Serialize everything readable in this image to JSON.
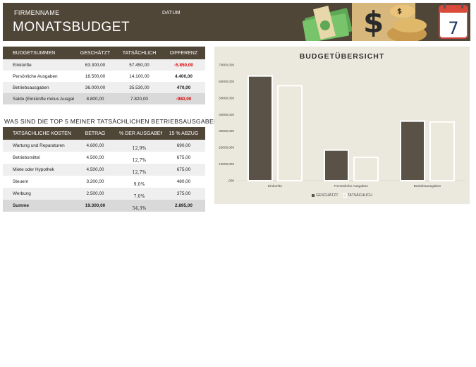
{
  "header": {
    "company": "FIRMENNAME",
    "date_label": "DATUM",
    "title": "MONATSBUDGET",
    "calendar_day": "7"
  },
  "summary": {
    "headers": [
      "BUDGETSUMMEN",
      "GESCHÄTZT",
      "TATSÄCHLICH",
      "DIFFERENZ"
    ],
    "rows": [
      {
        "label": "Einkünfte",
        "est": "63.300,00",
        "act": "57.450,00",
        "diff": "-5.850,00",
        "neg": true
      },
      {
        "label": "Persönliche Ausgaben",
        "est": "18.500,00",
        "act": "14.100,00",
        "diff": "4.400,00",
        "neg": false
      },
      {
        "label": "Betriebsausgaben",
        "est": "36.000,00",
        "act": "35.530,00",
        "diff": "470,00",
        "neg": false
      },
      {
        "label": "Saldo (Einkünfte minus Ausgaben)",
        "est": "8.800,00",
        "act": "7.820,00",
        "diff": "-980,00",
        "neg": true
      }
    ]
  },
  "top5": {
    "title": "WAS SIND DIE TOP 5 MEINER TATSÄCHLICHEN BETRIEBSAUSGABEN?",
    "headers": [
      "TATSÄCHLICHE KOSTEN",
      "BETRAG",
      "% DER AUSGABEN",
      "15 % ABZUG"
    ],
    "rows": [
      {
        "label": "Wartung und Reparaturen",
        "amount": "4.600,00",
        "pct": "12,9%",
        "deduct": "690,00"
      },
      {
        "label": "Betriebsmittel",
        "amount": "4.500,00",
        "pct": "12,7%",
        "deduct": "675,00"
      },
      {
        "label": "Miete oder Hypothek",
        "amount": "4.500,00",
        "pct": "12,7%",
        "deduct": "675,00"
      },
      {
        "label": "Steuern",
        "amount": "3.200,00",
        "pct": "9,0%",
        "deduct": "480,00"
      },
      {
        "label": "Werbung",
        "amount": "2.500,00",
        "pct": "7,0%",
        "deduct": "375,00"
      }
    ],
    "total": {
      "label": "Summe",
      "amount": "19.300,00",
      "pct": "54,3%",
      "deduct": "2.895,00"
    }
  },
  "chart_data": {
    "type": "bar",
    "title": "BUDGETÜBERSICHT",
    "categories": [
      "Einkünfte",
      "Persönliche Ausgaben",
      "Betriebsausgaben"
    ],
    "series": [
      {
        "name": "GESCHÄTZT",
        "values": [
          63300,
          18500,
          36000
        ],
        "color": "#5a5147"
      },
      {
        "name": "TATSÄCHLICH",
        "values": [
          57450,
          14100,
          35530
        ],
        "color": "#ebe8dc"
      }
    ],
    "ylim": [
      0,
      70000
    ],
    "yticks": [
      ",000",
      "10000,000",
      "20000,000",
      "30000,000",
      "40000,000",
      "50000,000",
      "60000,000",
      "70000,000"
    ],
    "legend": "bottom",
    "grid": false
  },
  "colors": {
    "header_bg": "#4f4638",
    "chart_bg": "#ebe9dd",
    "negative": "#e00000"
  }
}
